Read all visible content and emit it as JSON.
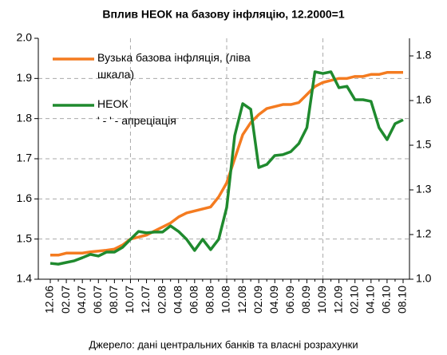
{
  "chart_data": {
    "type": "line",
    "title": "Вплив НЕОК на базову інфляцію, 12.2000=1",
    "source": "Джерело: дані центральних банків та власні розрахунки",
    "annotation": "' - ' - апреціація",
    "categories": [
      "12.06",
      null,
      "02.07",
      null,
      "04.07",
      null,
      "06.07",
      null,
      "08.07",
      null,
      "10.07",
      null,
      "12.07",
      null,
      "02.08",
      null,
      "04.08",
      null,
      "06.08",
      null,
      "08.08",
      null,
      "10.08",
      null,
      "12.08",
      null,
      "02.09",
      null,
      "04.09",
      null,
      "06.09",
      null,
      "08.09",
      null,
      "10.09",
      null,
      "12.09",
      null,
      "02.10",
      null,
      "04.10",
      null,
      "06.10",
      null,
      "08.10"
    ],
    "series": [
      {
        "name": "Вузька базова інфляція, (ліва шкала)",
        "color": "#f47b20",
        "values": [
          1.46,
          1.46,
          1.465,
          1.465,
          1.465,
          1.468,
          1.47,
          1.472,
          1.475,
          1.485,
          1.5,
          1.505,
          1.51,
          1.52,
          1.53,
          1.54,
          1.555,
          1.565,
          1.57,
          1.575,
          1.58,
          1.605,
          1.64,
          1.7,
          1.76,
          1.79,
          1.81,
          1.825,
          1.83,
          1.835,
          1.835,
          1.84,
          1.86,
          1.88,
          1.89,
          1.895,
          1.9,
          1.9,
          1.905,
          1.905,
          1.91,
          1.91,
          1.915,
          1.915,
          1.915
        ]
      },
      {
        "name": "НЕОК",
        "color": "#1f8a2e",
        "axis": "y2",
        "values": [
          1.057,
          1.054,
          1.06,
          1.066,
          1.077,
          1.089,
          1.083,
          1.097,
          1.097,
          1.114,
          1.143,
          1.171,
          1.166,
          1.169,
          1.169,
          1.191,
          1.171,
          1.143,
          1.103,
          1.143,
          1.106,
          1.143,
          1.257,
          1.514,
          1.629,
          1.609,
          1.4,
          1.411,
          1.443,
          1.446,
          1.457,
          1.486,
          1.543,
          1.743,
          1.737,
          1.743,
          1.686,
          1.691,
          1.643,
          1.643,
          1.637,
          1.543,
          1.5,
          1.557,
          1.571
        ]
      }
    ],
    "ylim": [
      1.4,
      2.0
    ],
    "yticks": [
      1.4,
      1.5,
      1.6,
      1.7,
      1.8,
      1.9,
      {
        "value": 2,
        "label": "2.0"
      }
    ],
    "y2lim": [
      1.0,
      1.863
    ],
    "y2ticks": [
      {
        "value": 1.0,
        "label": "1.0"
      },
      {
        "value": 1.16,
        "label": "1.2"
      },
      {
        "value": 1.32,
        "label": "1.3"
      },
      {
        "value": 1.48,
        "label": "1.5"
      },
      {
        "value": 1.64,
        "label": "1.6"
      },
      {
        "value": 1.8,
        "label": "1.8"
      }
    ],
    "grid": true
  }
}
